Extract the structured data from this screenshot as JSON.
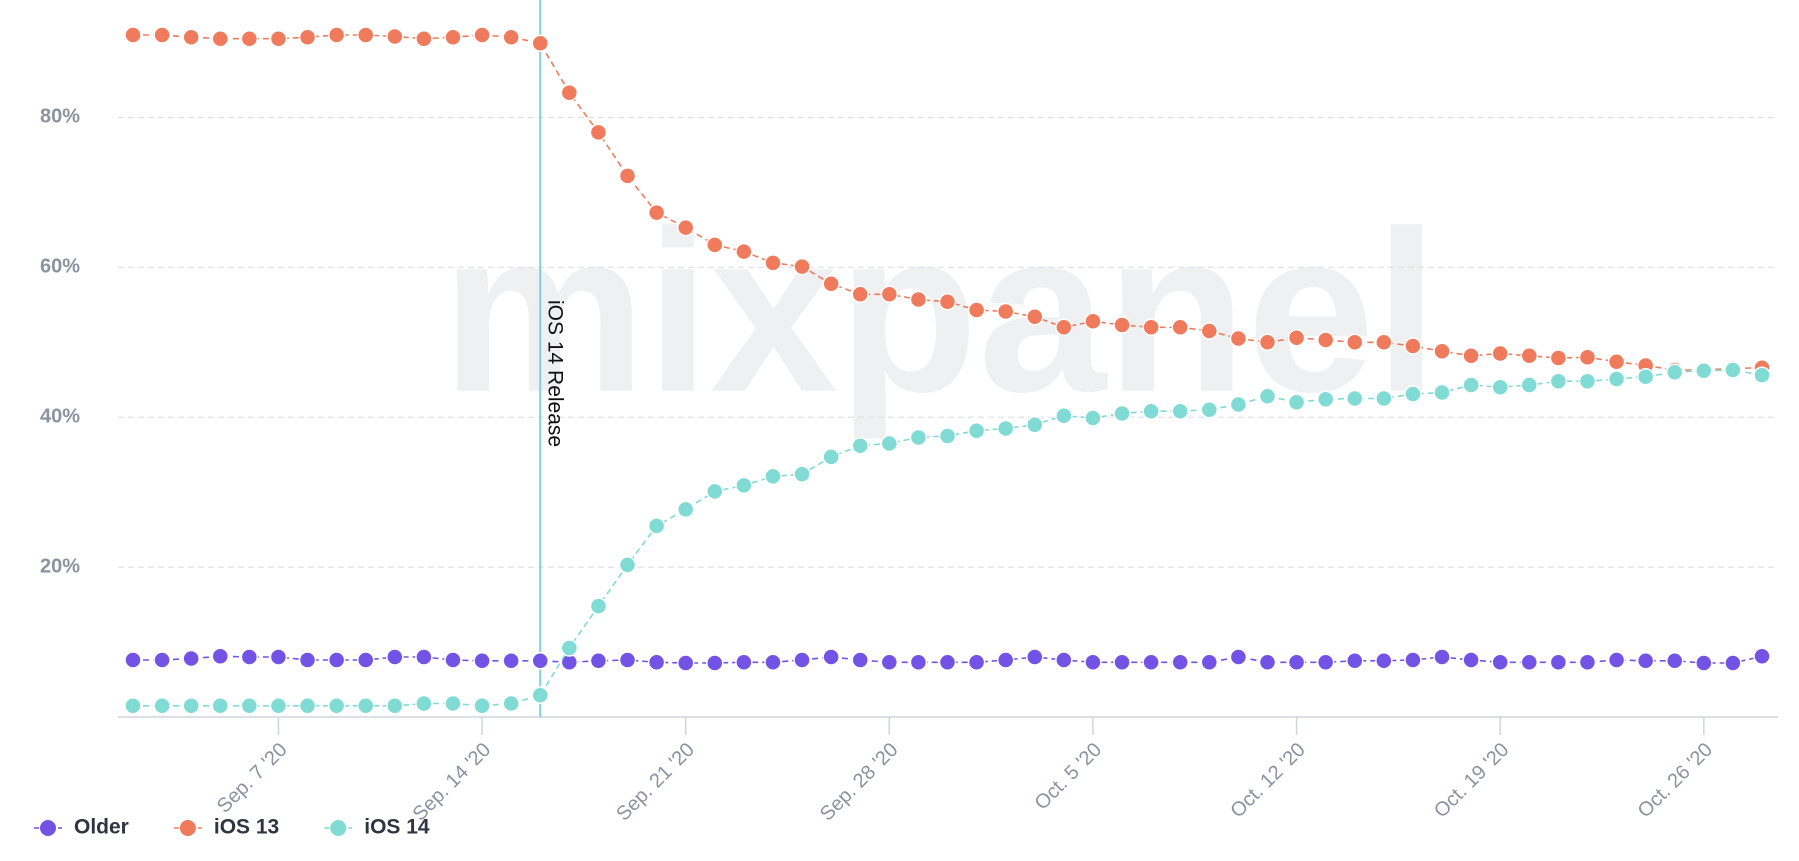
{
  "chart_data": {
    "type": "line",
    "watermark": "mixpanel",
    "x": [
      "2020-09-02",
      "2020-09-03",
      "2020-09-04",
      "2020-09-05",
      "2020-09-06",
      "2020-09-07",
      "2020-09-08",
      "2020-09-09",
      "2020-09-10",
      "2020-09-11",
      "2020-09-12",
      "2020-09-13",
      "2020-09-14",
      "2020-09-15",
      "2020-09-16",
      "2020-09-17",
      "2020-09-18",
      "2020-09-19",
      "2020-09-20",
      "2020-09-21",
      "2020-09-22",
      "2020-09-23",
      "2020-09-24",
      "2020-09-25",
      "2020-09-26",
      "2020-09-27",
      "2020-09-28",
      "2020-09-29",
      "2020-09-30",
      "2020-10-01",
      "2020-10-02",
      "2020-10-03",
      "2020-10-04",
      "2020-10-05",
      "2020-10-06",
      "2020-10-07",
      "2020-10-08",
      "2020-10-09",
      "2020-10-10",
      "2020-10-11",
      "2020-10-12",
      "2020-10-13",
      "2020-10-14",
      "2020-10-15",
      "2020-10-16",
      "2020-10-17",
      "2020-10-18",
      "2020-10-19",
      "2020-10-20",
      "2020-10-21",
      "2020-10-22",
      "2020-10-23",
      "2020-10-24",
      "2020-10-25",
      "2020-10-26",
      "2020-10-27",
      "2020-10-28"
    ],
    "series": [
      {
        "name": "Older",
        "color": "#7352e6",
        "values": [
          7.6,
          7.6,
          7.8,
          8.1,
          8.0,
          8.0,
          7.6,
          7.6,
          7.6,
          8.0,
          8.0,
          7.6,
          7.5,
          7.5,
          7.5,
          7.3,
          7.5,
          7.6,
          7.3,
          7.2,
          7.2,
          7.3,
          7.3,
          7.6,
          8.0,
          7.6,
          7.3,
          7.3,
          7.3,
          7.3,
          7.6,
          8.0,
          7.6,
          7.3,
          7.3,
          7.3,
          7.3,
          7.3,
          8.0,
          7.3,
          7.3,
          7.3,
          7.5,
          7.5,
          7.6,
          8.0,
          7.6,
          7.3,
          7.3,
          7.3,
          7.3,
          7.6,
          7.5,
          7.5,
          7.2,
          7.2,
          8.1
        ]
      },
      {
        "name": "iOS 13",
        "color": "#f07b5c",
        "values": [
          91.0,
          91.0,
          90.7,
          90.5,
          90.5,
          90.5,
          90.7,
          91.0,
          91.0,
          90.8,
          90.5,
          90.7,
          91.0,
          90.7,
          89.9,
          83.3,
          78.0,
          72.2,
          67.3,
          65.3,
          63.0,
          62.1,
          60.6,
          60.1,
          57.8,
          56.4,
          56.4,
          55.7,
          55.4,
          54.3,
          54.1,
          53.4,
          52.0,
          52.8,
          52.3,
          52.0,
          52.0,
          51.5,
          50.5,
          50.0,
          50.6,
          50.3,
          50.0,
          50.0,
          49.5,
          48.8,
          48.2,
          48.5,
          48.2,
          47.9,
          48.0,
          47.4,
          46.9,
          46.3,
          46.3,
          46.5,
          46.6
        ]
      },
      {
        "name": "iOS 14",
        "color": "#7fdbd3",
        "values": [
          1.5,
          1.5,
          1.5,
          1.5,
          1.5,
          1.5,
          1.5,
          1.5,
          1.5,
          1.5,
          1.8,
          1.8,
          1.5,
          1.8,
          2.9,
          9.2,
          14.8,
          20.3,
          25.5,
          27.7,
          30.1,
          30.9,
          32.1,
          32.4,
          34.7,
          36.2,
          36.5,
          37.3,
          37.5,
          38.2,
          38.5,
          39.0,
          40.2,
          39.9,
          40.5,
          40.8,
          40.8,
          41.0,
          41.7,
          42.8,
          42.0,
          42.4,
          42.5,
          42.5,
          43.1,
          43.3,
          44.3,
          44.0,
          44.3,
          44.8,
          44.8,
          45.1,
          45.4,
          46.0,
          46.2,
          46.3,
          45.6
        ]
      }
    ],
    "xlim": [
      "2020-09-02",
      "2020-10-28"
    ],
    "xticks": [
      {
        "value": "2020-09-07",
        "label": "Sep. 7 '20"
      },
      {
        "value": "2020-09-14",
        "label": "Sep. 14 '20"
      },
      {
        "value": "2020-09-21",
        "label": "Sep. 21 '20"
      },
      {
        "value": "2020-09-28",
        "label": "Sep. 28 '20"
      },
      {
        "value": "2020-10-05",
        "label": "Oct. 5 '20"
      },
      {
        "value": "2020-10-12",
        "label": "Oct. 12 '20"
      },
      {
        "value": "2020-10-19",
        "label": "Oct. 19 '20"
      },
      {
        "value": "2020-10-26",
        "label": "Oct. 26 '20"
      }
    ],
    "ylim": [
      0,
      95
    ],
    "yticks": [
      {
        "value": 20,
        "label": "20%"
      },
      {
        "value": 40,
        "label": "40%"
      },
      {
        "value": 60,
        "label": "60%"
      },
      {
        "value": 80,
        "label": "80%"
      }
    ],
    "grid": true,
    "legend": "bottom-left",
    "annotations": [
      {
        "x": "2020-09-16",
        "text": "iOS 14 Release",
        "color": "#7fd0d6"
      }
    ]
  }
}
